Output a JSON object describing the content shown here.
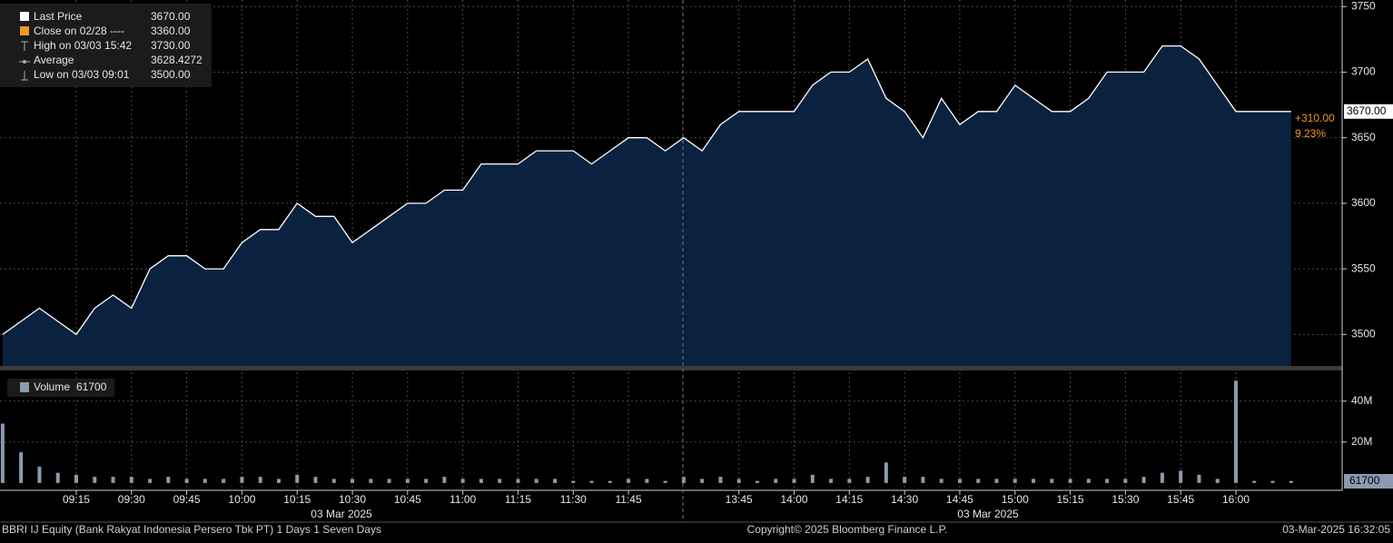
{
  "chart_data": [
    {
      "type": "area",
      "color": "#ffffff",
      "fill": "#0a2140",
      "categories": [
        null,
        null,
        null,
        null,
        "09:15",
        null,
        null,
        "09:30",
        null,
        null,
        "09:45",
        null,
        null,
        "10:00",
        null,
        null,
        "10:15",
        null,
        null,
        "10:30",
        null,
        null,
        "10:45",
        null,
        null,
        "11:00",
        null,
        null,
        "11:15",
        null,
        null,
        "11:30",
        null,
        null,
        "11:45",
        null,
        null,
        null,
        null,
        null,
        "13:45",
        null,
        null,
        "14:00",
        null,
        null,
        "14:15",
        null,
        null,
        "14:30",
        null,
        null,
        "14:45",
        null,
        null,
        "15:00",
        null,
        null,
        "15:15",
        null,
        null,
        "15:30",
        null,
        null,
        "15:45",
        null,
        null,
        "16:00",
        null,
        null,
        null
      ],
      "date_labels": [
        "03 Mar 2025",
        "03 Mar 2025"
      ],
      "values": [
        3500,
        3510,
        3520,
        3510,
        3500,
        3520,
        3530,
        3520,
        3550,
        3560,
        3560,
        3550,
        3550,
        3570,
        3580,
        3580,
        3600,
        3590,
        3590,
        3570,
        3580,
        3590,
        3600,
        3600,
        3610,
        3610,
        3630,
        3630,
        3630,
        3640,
        3640,
        3640,
        3630,
        3640,
        3650,
        3650,
        3640,
        3650,
        3640,
        3660,
        3670,
        3670,
        3670,
        3670,
        3690,
        3700,
        3700,
        3710,
        3680,
        3670,
        3650,
        3680,
        3660,
        3670,
        3670,
        3690,
        3680,
        3670,
        3670,
        3680,
        3700,
        3700,
        3700,
        3720,
        3720,
        3710,
        3690,
        3670,
        3670,
        3670,
        3670
      ],
      "ylim": [
        3476,
        3755
      ],
      "yticks": [
        3500,
        3550,
        3600,
        3650,
        3700,
        3750
      ],
      "grid": true,
      "stats": [
        {
          "name": "Last Price",
          "value": 3670,
          "label": "3670.00"
        },
        {
          "name": "Close on 02/28 ----",
          "value": 3360,
          "label": "3360.00"
        },
        {
          "name": "High on 03/03 15:42",
          "value": 3730,
          "label": "3730.00"
        },
        {
          "name": "Average",
          "value": 3628.4272,
          "label": "3628.4272"
        },
        {
          "name": "Low on 03/03 09:01",
          "value": 3500,
          "label": "3500.00"
        }
      ],
      "change": {
        "value": 310,
        "label": "+310.00"
      },
      "change_pct": {
        "value": 9.23,
        "label": "9.23%"
      }
    },
    {
      "type": "bar",
      "name": "Volume",
      "color": "#8c9ab0",
      "last": 61700,
      "values": [
        29,
        15,
        8,
        5,
        4,
        3,
        3,
        3,
        2,
        3,
        2,
        2,
        2,
        3,
        3,
        2,
        4,
        3,
        2,
        2,
        2,
        2,
        2,
        2,
        3,
        2,
        2,
        2,
        2,
        2,
        2,
        1,
        1,
        1,
        2,
        2,
        1,
        3,
        2,
        3,
        2,
        1,
        2,
        2,
        4,
        2,
        2,
        3,
        10,
        3,
        3,
        2,
        2,
        2,
        2,
        2,
        2,
        2,
        2,
        2,
        2,
        2,
        3,
        5,
        6,
        4,
        2,
        50,
        1,
        1,
        1
      ],
      "ylim": [
        -3.6,
        55
      ],
      "yticks": [
        {
          "value": 20,
          "label": "20M"
        },
        {
          "value": 40,
          "label": "40M"
        }
      ],
      "grid": true
    }
  ],
  "footer": {
    "left": "BBRI IJ Equity (Bank Rakyat Indonesia Persero Tbk PT) 1 Days 1 Seven Days",
    "center": "Copyright© 2025 Bloomberg Finance L.P.",
    "right": "03-Mar-2025 16:32:05"
  }
}
